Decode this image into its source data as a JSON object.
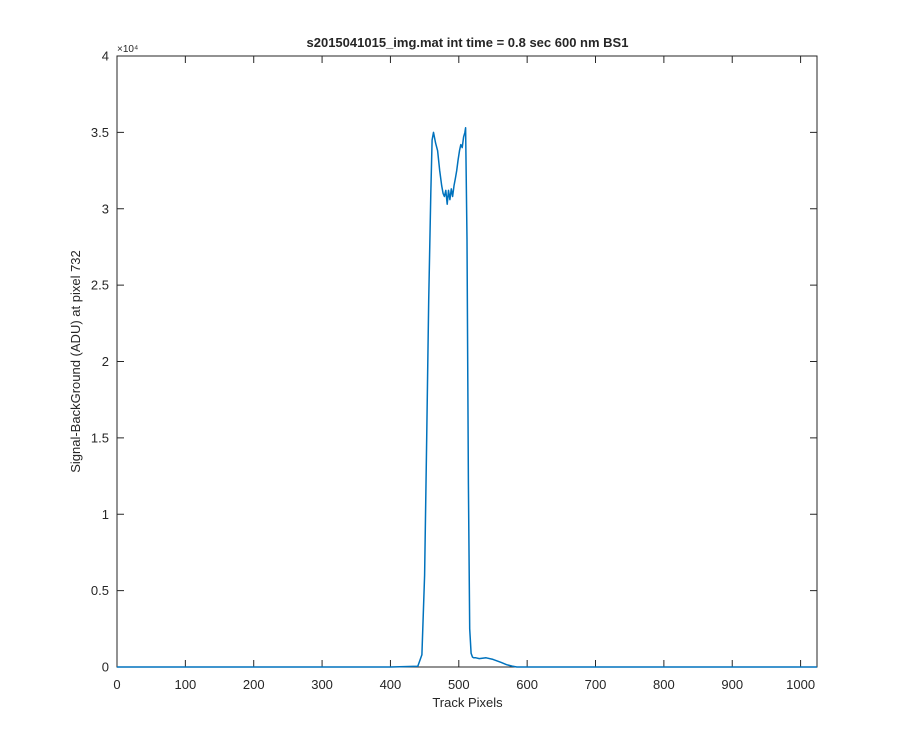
{
  "chart_data": {
    "type": "line",
    "title": "s2015041015_img.mat int time = 0.8 sec  600 nm BS1",
    "xlabel": "Track Pixels",
    "ylabel": "Signal-BackGround (ADU) at pixel 732",
    "xlim": [
      0,
      1024
    ],
    "ylim": [
      0,
      40000
    ],
    "x_ticks": [
      0,
      100,
      200,
      300,
      400,
      500,
      600,
      700,
      800,
      900,
      1000
    ],
    "x_tick_labels": [
      "0",
      "100",
      "200",
      "300",
      "400",
      "500",
      "600",
      "700",
      "800",
      "900",
      "1000"
    ],
    "y_ticks": [
      0,
      5000,
      10000,
      15000,
      20000,
      25000,
      30000,
      35000,
      40000
    ],
    "y_tick_labels": [
      "0",
      "0.5",
      "1",
      "1.5",
      "2",
      "2.5",
      "3",
      "3.5",
      "4"
    ],
    "y_exponent_label": "×10⁴",
    "grid": false,
    "line_color": "#0072BD",
    "series": [
      {
        "x": [
          0,
          100,
          200,
          300,
          400,
          440,
          446,
          450,
          453,
          456,
          459,
          461,
          463,
          466,
          469,
          472,
          475,
          477,
          479,
          481,
          483,
          485,
          487,
          489,
          491,
          493,
          495,
          497,
          499,
          501,
          503,
          505,
          507,
          509,
          510,
          512,
          514,
          516,
          518,
          520,
          522,
          525,
          530,
          540,
          550,
          556,
          562,
          570,
          578,
          585,
          600,
          700,
          800,
          900,
          1024
        ],
        "y": [
          0,
          0,
          0,
          0,
          0,
          50,
          800,
          6000,
          15000,
          24000,
          31000,
          34500,
          35000,
          34300,
          33800,
          32500,
          31500,
          31000,
          30800,
          31200,
          30300,
          31200,
          30600,
          31300,
          30800,
          31500,
          32000,
          32500,
          33200,
          33800,
          34200,
          34000,
          34700,
          35000,
          35300,
          28000,
          12000,
          2500,
          900,
          650,
          600,
          600,
          550,
          600,
          500,
          400,
          300,
          150,
          60,
          0,
          0,
          0,
          0,
          0,
          0
        ]
      }
    ]
  }
}
